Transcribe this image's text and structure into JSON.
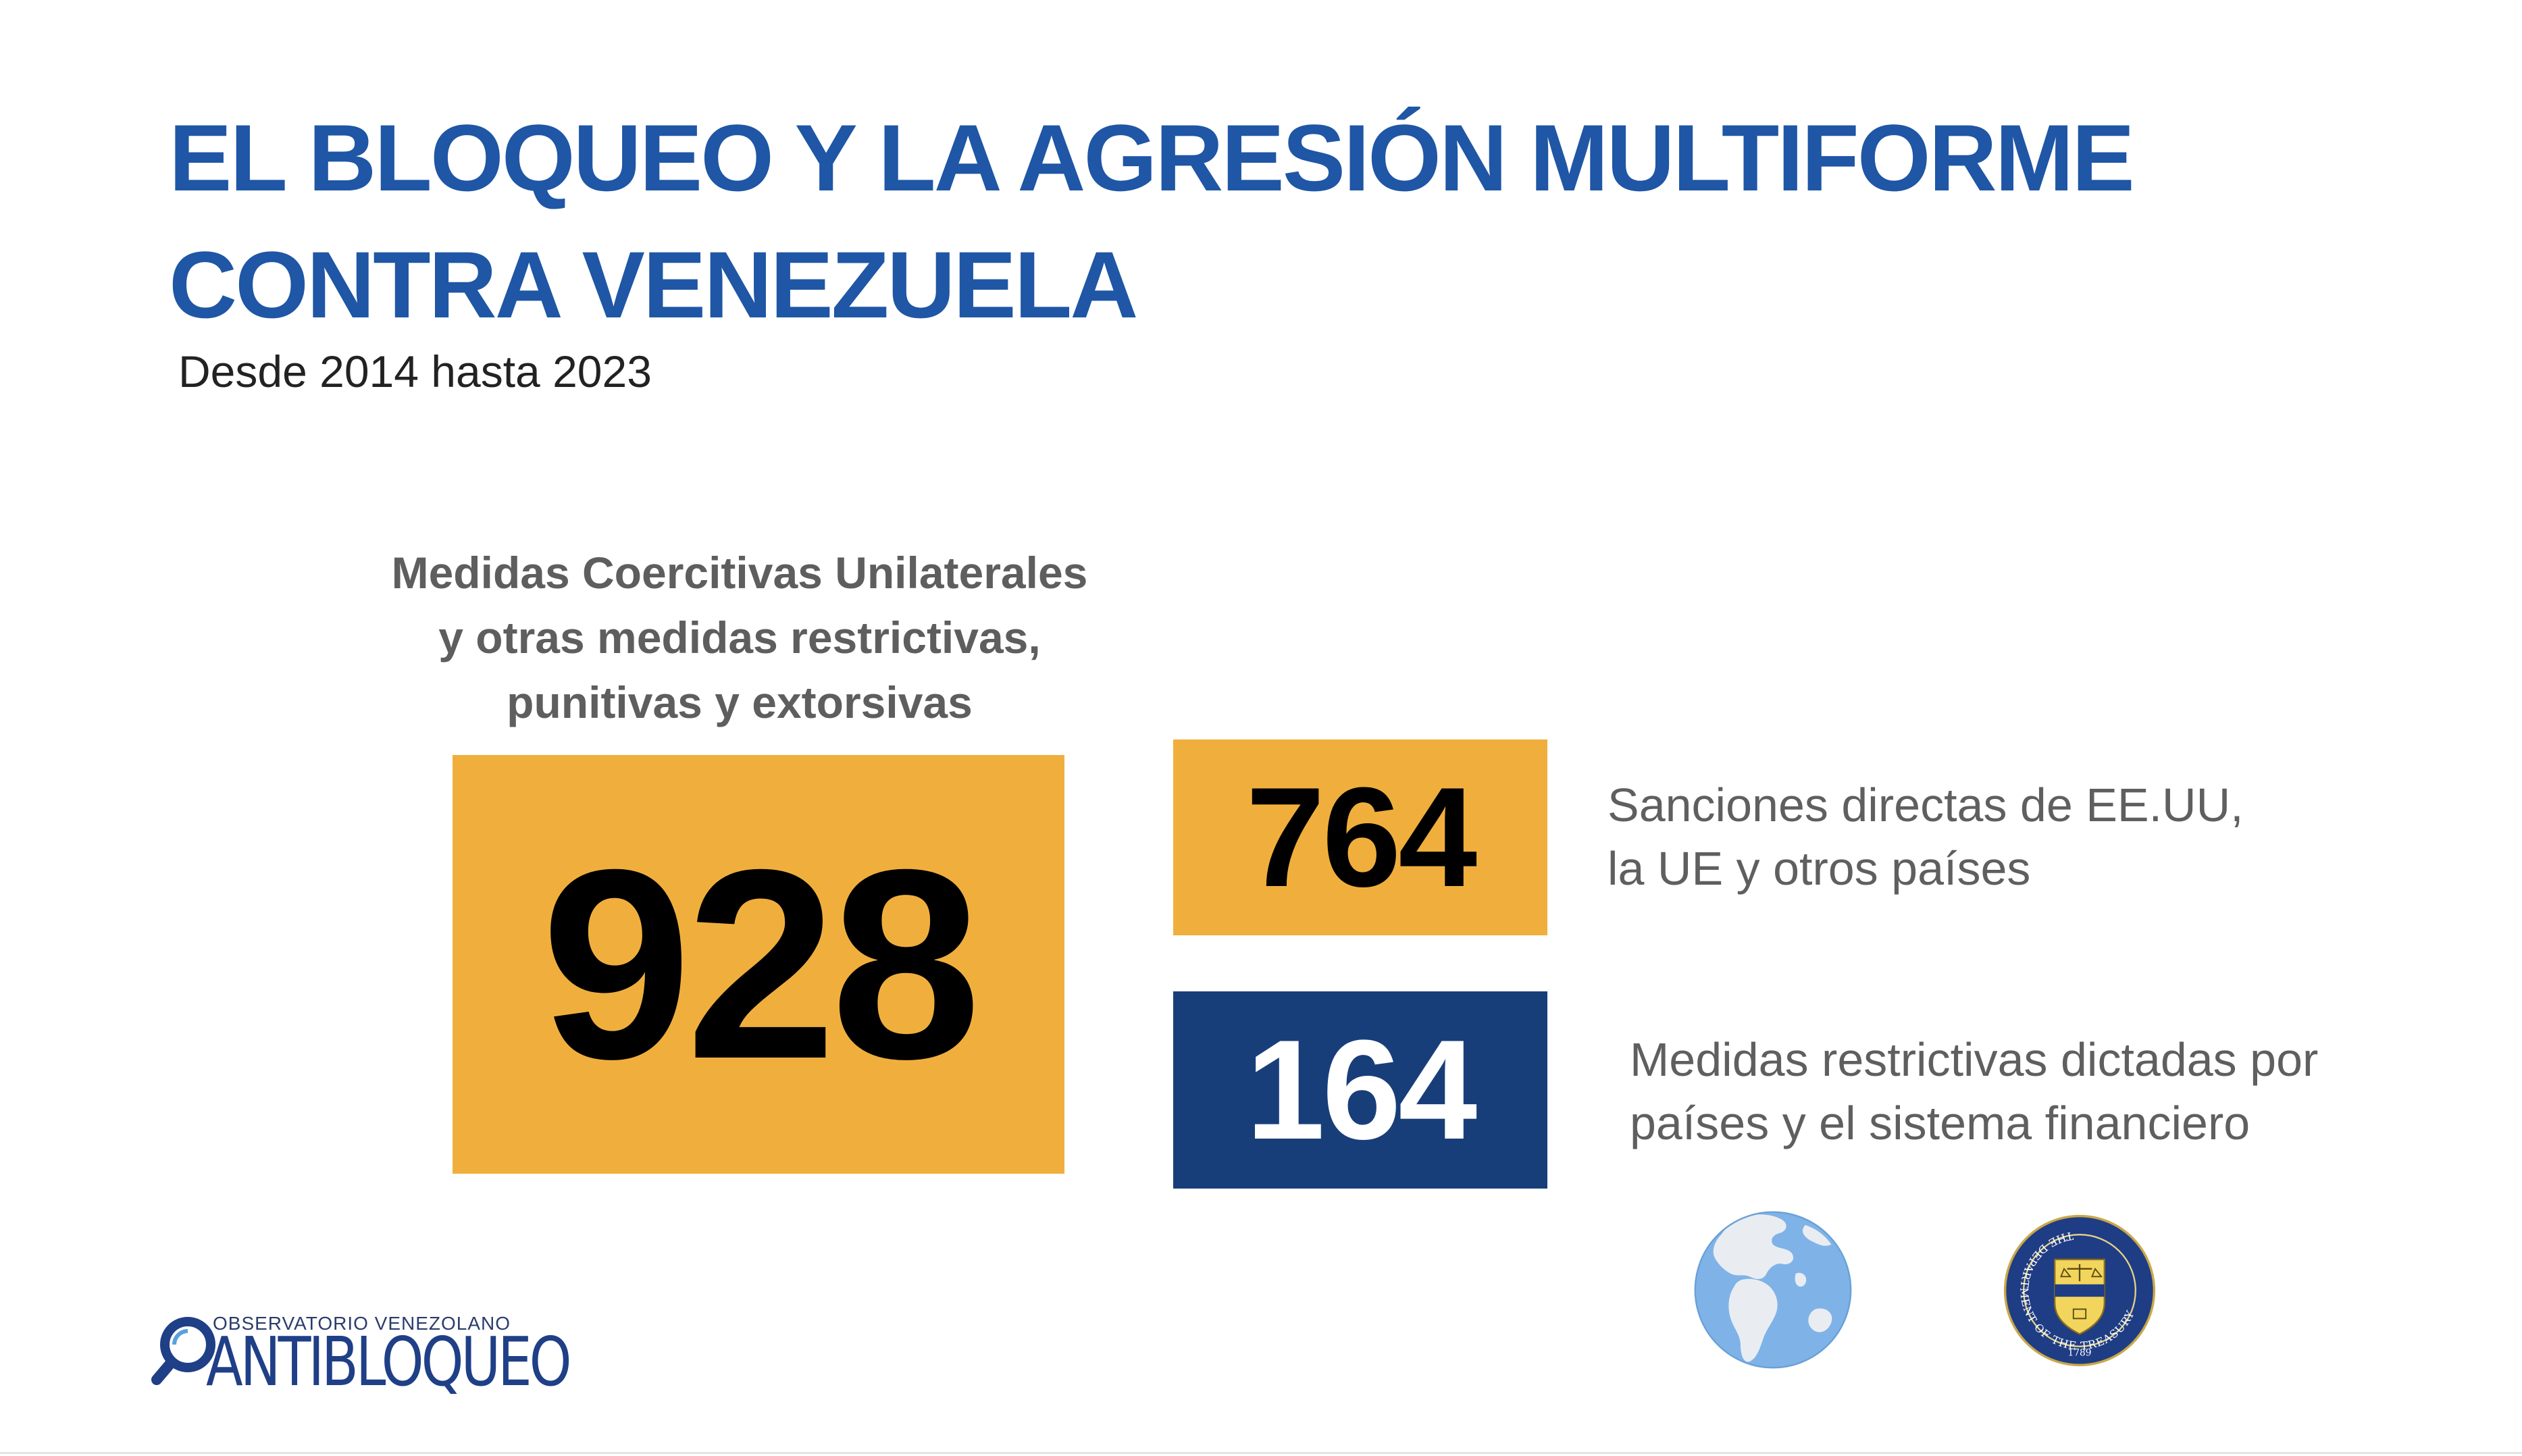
{
  "title": {
    "line1": "EL BLOQUEO Y LA AGRESIÓN MULTIFORME",
    "line2": "CONTRA VENEZUELA"
  },
  "subtitle": "Desde 2014 hasta 2023",
  "main_label": {
    "line1": "Medidas Coercitivas Unilaterales",
    "line2": "y otras medidas restrictivas,",
    "line3": "punitivas y extorsivas"
  },
  "stats": {
    "total": {
      "value": "928",
      "background": "#f0af3d",
      "text_color": "#000000"
    },
    "direct": {
      "value": "764",
      "background": "#f0af3d",
      "text_color": "#000000",
      "desc_line1": "Sanciones directas de EE.UU,",
      "desc_line2": "la UE y otros países"
    },
    "restrictive": {
      "value": "164",
      "background": "#183e7a",
      "text_color": "#ffffff",
      "desc_line1": "Medidas restrictivas dictadas por",
      "desc_line2": "países y el sistema financiero"
    }
  },
  "icons": {
    "globe": "globe-icon",
    "seal": "treasury-seal-icon"
  },
  "seal_text": {
    "ring": "THE DEPARTMENT OF THE TREASURY",
    "year": "1789"
  },
  "logo": {
    "small": "OBSERVATORIO VENEZOLANO",
    "big": "ANTIBLOQUEO",
    "color": "#1f3f87"
  },
  "colors": {
    "title": "#1f56a5",
    "orange": "#f0af3d",
    "navy": "#183e7a",
    "gray_text": "#5f5f5f"
  }
}
